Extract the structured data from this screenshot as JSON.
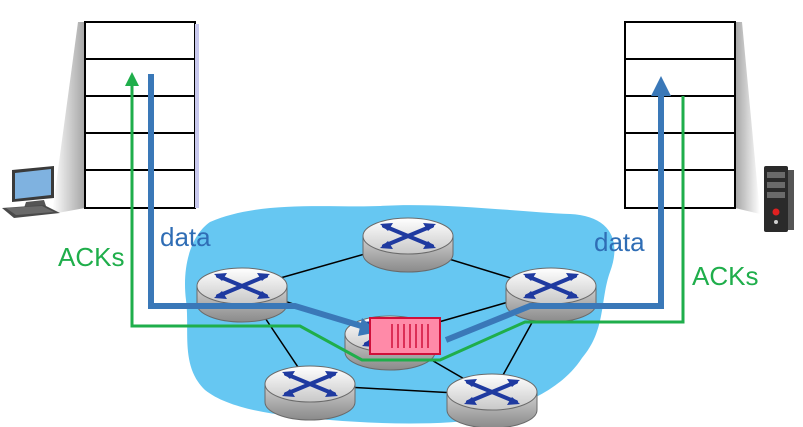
{
  "labels": {
    "data_left": "data",
    "acks_left": "ACKs",
    "data_right": "data",
    "acks_right": "ACKs"
  },
  "colors": {
    "data_flow": "#3a78b8",
    "ack_flow": "#1fae4b",
    "network_cloud": "#66c7f2",
    "queue_fill": "#ff8aa8",
    "queue_border": "#d0103a",
    "router_cross": "#1f3aa0"
  },
  "icons": [
    "desktop-computer-icon",
    "server-tower-icon",
    "router-icon",
    "router-queue-buffer-icon"
  ]
}
